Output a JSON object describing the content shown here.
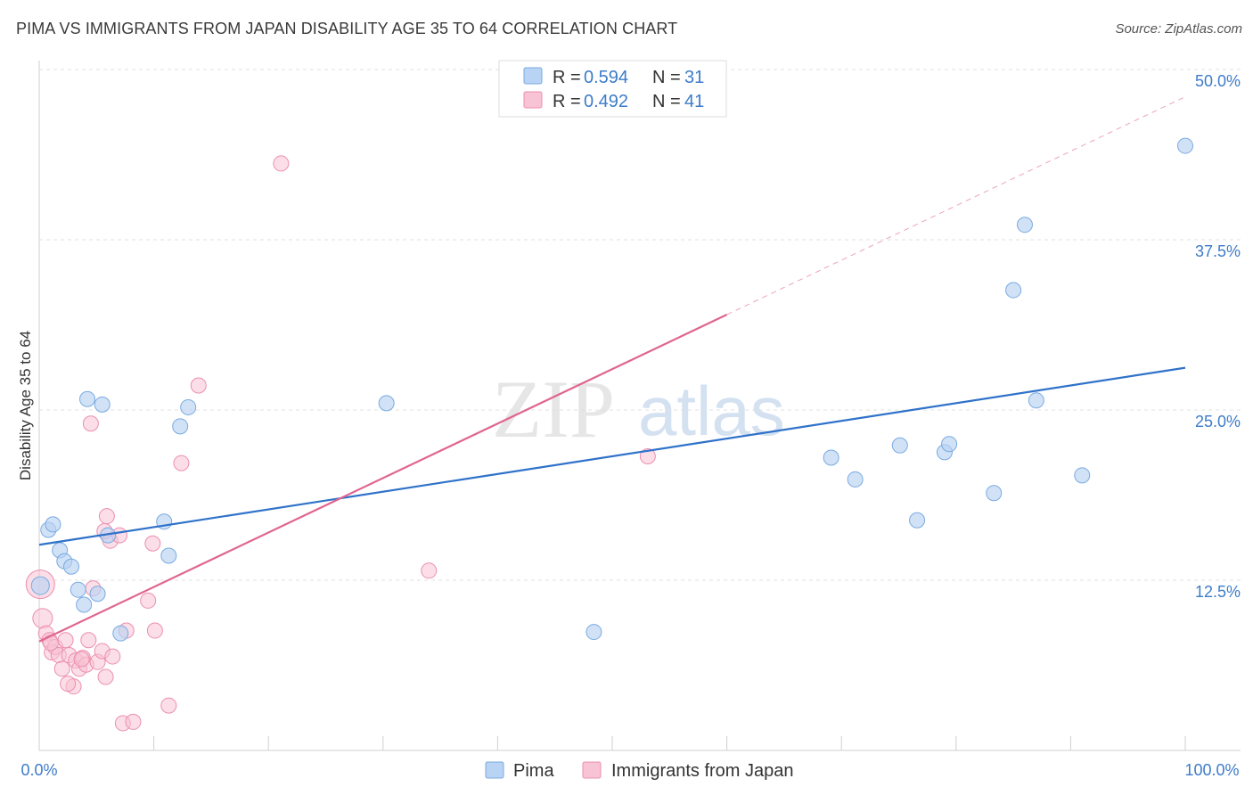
{
  "header": {
    "title": "PIMA VS IMMIGRANTS FROM JAPAN DISABILITY AGE 35 TO 64 CORRELATION CHART",
    "source": "Source: ZipAtlas.com"
  },
  "watermark": {
    "zip": "ZIP",
    "atlas": "atlas"
  },
  "legend_top": [
    {
      "r_label": "R = ",
      "r_value": "0.594",
      "n_label": "N = ",
      "n_value": "31"
    },
    {
      "r_label": "R = ",
      "r_value": "0.492",
      "n_label": "N = ",
      "n_value": "41"
    }
  ],
  "legend_bottom": [
    "Pima",
    "Immigrants from Japan"
  ],
  "colors": {
    "pima_fill": "#b8d3f3",
    "pima_stroke": "#7aaae0",
    "pima_line": "#2f72c9",
    "japan_fill": "#f8c3d4",
    "japan_stroke": "#ec8fb0",
    "japan_line": "#e0668f",
    "grid": "#e0e0e0",
    "axis_text": "#3d7cc9"
  },
  "chart_data": {
    "type": "scatter",
    "title": "PIMA VS IMMIGRANTS FROM JAPAN DISABILITY AGE 35 TO 64 CORRELATION CHART",
    "xlabel": "",
    "ylabel": "Disability Age 35 to 64",
    "xlim": [
      0,
      100
    ],
    "ylim": [
      0,
      50
    ],
    "x_tick_labels": [
      "0.0%",
      "100.0%"
    ],
    "y_ticks": [
      12.5,
      25.0,
      37.5,
      50.0
    ],
    "y_tick_labels": [
      "12.5%",
      "25.0%",
      "37.5%",
      "50.0%"
    ],
    "grid": true,
    "series": [
      {
        "name": "Pima",
        "r": 0.594,
        "n": 31,
        "trend": {
          "x0": 0,
          "y0": 15.1,
          "x1": 100,
          "y1": 28.1
        },
        "points": [
          [
            0.1,
            12.1
          ],
          [
            0.8,
            16.2
          ],
          [
            1.2,
            16.6
          ],
          [
            1.8,
            14.7
          ],
          [
            2.2,
            13.9
          ],
          [
            2.8,
            13.5
          ],
          [
            3.4,
            11.8
          ],
          [
            3.9,
            10.7
          ],
          [
            5.1,
            11.5
          ],
          [
            4.2,
            25.8
          ],
          [
            5.5,
            25.4
          ],
          [
            6.0,
            15.8
          ],
          [
            7.1,
            8.6
          ],
          [
            10.9,
            16.8
          ],
          [
            11.3,
            14.3
          ],
          [
            12.3,
            23.8
          ],
          [
            13.0,
            25.2
          ],
          [
            30.3,
            25.5
          ],
          [
            48.4,
            8.7
          ],
          [
            69.1,
            21.5
          ],
          [
            71.2,
            19.9
          ],
          [
            75.1,
            22.4
          ],
          [
            76.6,
            16.9
          ],
          [
            79.0,
            21.9
          ],
          [
            79.4,
            22.5
          ],
          [
            83.3,
            18.9
          ],
          [
            85.0,
            33.8
          ],
          [
            86.0,
            38.6
          ],
          [
            87.0,
            25.7
          ],
          [
            91.0,
            20.2
          ],
          [
            100.0,
            44.4
          ]
        ]
      },
      {
        "name": "Immigrants from Japan",
        "r": 0.492,
        "n": 41,
        "trend": {
          "x0": 0,
          "y0": 8.0,
          "x1": 60,
          "y1": 32.0,
          "dashed_to_x": 100,
          "dashed_to_y": 48.0
        },
        "points": [
          [
            0.1,
            12.2
          ],
          [
            0.3,
            9.7
          ],
          [
            0.6,
            8.6
          ],
          [
            0.9,
            8.1
          ],
          [
            1.1,
            7.2
          ],
          [
            1.4,
            7.6
          ],
          [
            1.7,
            7.0
          ],
          [
            2.0,
            6.0
          ],
          [
            2.3,
            8.1
          ],
          [
            2.6,
            7.0
          ],
          [
            3.0,
            4.7
          ],
          [
            3.2,
            6.6
          ],
          [
            3.5,
            6.0
          ],
          [
            3.8,
            6.8
          ],
          [
            4.1,
            6.3
          ],
          [
            4.3,
            8.1
          ],
          [
            4.7,
            11.9
          ],
          [
            5.1,
            6.5
          ],
          [
            5.5,
            7.3
          ],
          [
            5.8,
            5.4
          ],
          [
            6.2,
            15.4
          ],
          [
            5.7,
            16.1
          ],
          [
            5.9,
            17.2
          ],
          [
            7.0,
            15.8
          ],
          [
            7.3,
            2.0
          ],
          [
            7.6,
            8.8
          ],
          [
            8.2,
            2.1
          ],
          [
            9.5,
            11.0
          ],
          [
            9.9,
            15.2
          ],
          [
            10.1,
            8.8
          ],
          [
            11.3,
            3.3
          ],
          [
            12.4,
            21.1
          ],
          [
            13.9,
            26.8
          ],
          [
            21.1,
            43.1
          ],
          [
            34.0,
            13.2
          ],
          [
            53.1,
            21.6
          ],
          [
            4.5,
            24.0
          ],
          [
            2.5,
            4.9
          ],
          [
            1.0,
            7.9
          ],
          [
            3.7,
            6.7
          ],
          [
            6.4,
            6.9
          ]
        ]
      }
    ]
  }
}
